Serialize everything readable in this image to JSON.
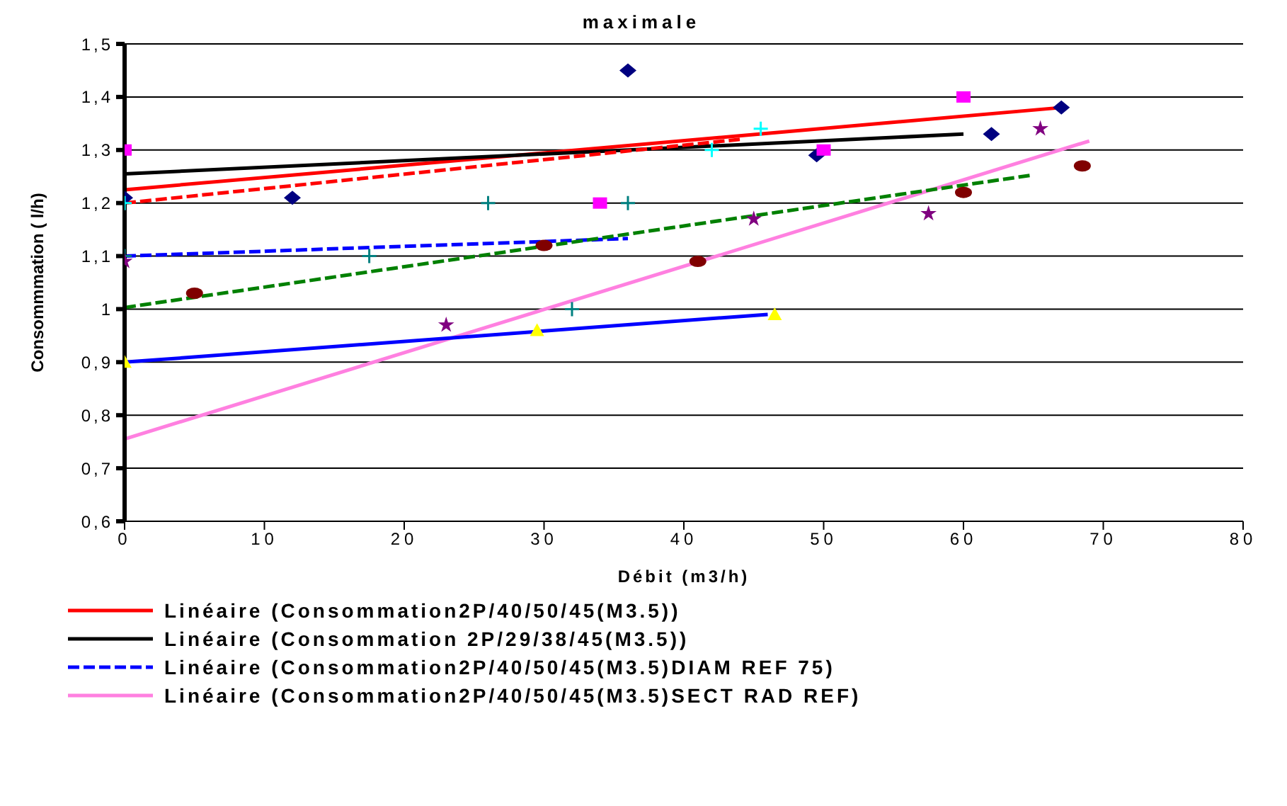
{
  "chart_data": {
    "type": "scatter",
    "title": "maximale",
    "xlabel": "Débit (m3/h)",
    "ylabel": "Consommmation ( l/h)",
    "xlim": [
      0,
      80
    ],
    "xticks": [
      0,
      10,
      20,
      30,
      40,
      50,
      60,
      70,
      80
    ],
    "ylim": [
      0.6,
      1.5
    ],
    "yticks": [
      {
        "value": 0.6,
        "label": "0,6"
      },
      {
        "value": 0.7,
        "label": "0,7"
      },
      {
        "value": 0.8,
        "label": "0,8"
      },
      {
        "value": 0.9,
        "label": "0,9"
      },
      {
        "value": 1,
        "label": "1"
      },
      {
        "value": 1.1,
        "label": "1,1"
      },
      {
        "value": 1.2,
        "label": "1,2"
      },
      {
        "value": 1.3,
        "label": "1,3"
      },
      {
        "value": 1.4,
        "label": "1,4"
      },
      {
        "value": 1.5,
        "label": "1,5"
      }
    ],
    "grid": "y",
    "legend": "bottom",
    "series": [
      {
        "marker": "diamond",
        "color": "#000080",
        "x": [
          0,
          12,
          36,
          49.5,
          62,
          67
        ],
        "values": [
          1.21,
          1.21,
          1.45,
          1.29,
          1.33,
          1.38
        ]
      },
      {
        "marker": "square",
        "color": "#ff00ff",
        "x": [
          0,
          34,
          50,
          60
        ],
        "values": [
          1.3,
          1.2,
          1.3,
          1.4
        ]
      },
      {
        "marker": "cross",
        "color": "#008080",
        "x": [
          0,
          17.5,
          26,
          32,
          36
        ],
        "values": [
          1.1,
          1.1,
          1.2,
          1.0,
          1.2
        ]
      },
      {
        "marker": "cross",
        "color": "#00ffff",
        "x": [
          0,
          42,
          45.5
        ],
        "values": [
          1.2,
          1.3,
          1.34
        ]
      },
      {
        "marker": "triangle",
        "color": "#ffff00",
        "x": [
          0,
          29.5,
          46.5
        ],
        "values": [
          0.9,
          0.96,
          0.99
        ]
      },
      {
        "marker": "star",
        "color": "#800080",
        "x": [
          0,
          23,
          45,
          57.5,
          65.5
        ],
        "values": [
          1.09,
          0.97,
          1.17,
          1.18,
          1.34
        ]
      },
      {
        "marker": "circle",
        "color": "#800000",
        "x": [
          5,
          30,
          41,
          60,
          68.5
        ],
        "values": [
          1.03,
          1.12,
          1.09,
          1.22,
          1.27
        ]
      },
      {
        "type": "line",
        "name": "Linéaire (Consommation2P/40/50/45(M3.5))",
        "color": "#ff0000",
        "line_style": "solid",
        "x": [
          0,
          67
        ],
        "values": [
          1.225,
          1.38
        ]
      },
      {
        "type": "line",
        "name": "Linéaire (Consommation 2P/29/38/45(M3.5))",
        "color": "#000000",
        "line_style": "solid",
        "x": [
          0,
          60
        ],
        "values": [
          1.255,
          1.33
        ]
      },
      {
        "type": "line",
        "name": "Linéaire (Consommation2P/40/50/45(M3.5)DIAM REF 75)",
        "color": "#0000ff",
        "line_style": "dashed",
        "x": [
          0,
          36
        ],
        "values": [
          1.1,
          1.133
        ]
      },
      {
        "type": "line",
        "name": "Linéaire (Consommation2P/40/50/45(M3.5)SECT RAD REF)",
        "color": "#ff80e0",
        "line_style": "solid",
        "x": [
          0,
          69
        ],
        "values": [
          0.755,
          1.317
        ]
      },
      {
        "type": "line",
        "color": "#ff0000",
        "line_style": "dashed",
        "x": [
          0,
          44
        ],
        "values": [
          1.2,
          1.32
        ]
      },
      {
        "type": "line",
        "color": "#008000",
        "line_style": "dashed",
        "x": [
          0,
          65
        ],
        "values": [
          1.003,
          1.253
        ]
      },
      {
        "type": "line",
        "color": "#0000ff",
        "line_style": "solid",
        "x": [
          0,
          46
        ],
        "values": [
          0.9,
          0.99
        ]
      }
    ]
  }
}
